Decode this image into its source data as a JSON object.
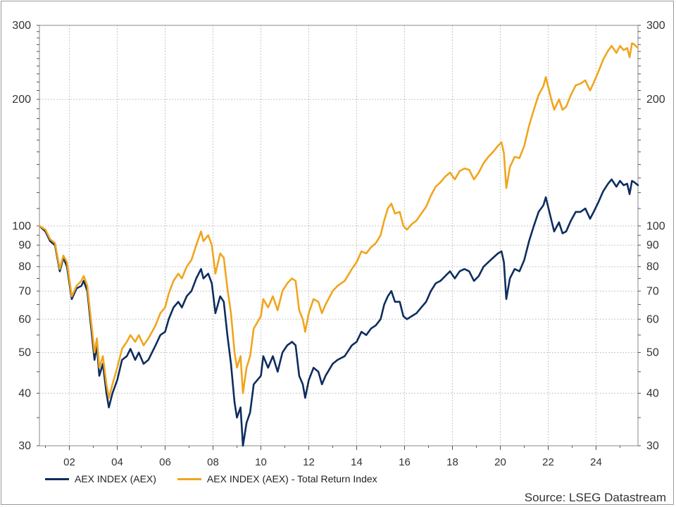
{
  "chart_data": {
    "type": "line",
    "title": "",
    "xlabel": "",
    "ylabel": "",
    "log_scale_y": true,
    "ylim": [
      30,
      300
    ],
    "xlim": [
      2000.75,
      2025.75
    ],
    "y_ticks": [
      30,
      40,
      50,
      60,
      70,
      80,
      90,
      100,
      200,
      300
    ],
    "x_ticks": [
      {
        "value": 2002,
        "label": "02"
      },
      {
        "value": 2004,
        "label": "04"
      },
      {
        "value": 2006,
        "label": "06"
      },
      {
        "value": 2008,
        "label": "08"
      },
      {
        "value": 2010,
        "label": "10"
      },
      {
        "value": 2012,
        "label": "12"
      },
      {
        "value": 2014,
        "label": "14"
      },
      {
        "value": 2016,
        "label": "16"
      },
      {
        "value": 2018,
        "label": "18"
      },
      {
        "value": 2020,
        "label": "20"
      },
      {
        "value": 2022,
        "label": "22"
      },
      {
        "value": 2024,
        "label": "24"
      }
    ],
    "grid": true,
    "legend_position": "bottom-left",
    "series": [
      {
        "name": "AEX INDEX (AEX)",
        "color": "#0d2d5e",
        "points": [
          [
            2000.75,
            100
          ],
          [
            2001.0,
            97
          ],
          [
            2001.2,
            92
          ],
          [
            2001.4,
            90
          ],
          [
            2001.6,
            78
          ],
          [
            2001.75,
            84
          ],
          [
            2001.9,
            80
          ],
          [
            2002.1,
            67
          ],
          [
            2002.3,
            71
          ],
          [
            2002.5,
            72
          ],
          [
            2002.6,
            74
          ],
          [
            2002.75,
            70
          ],
          [
            2002.9,
            58
          ],
          [
            2003.05,
            48
          ],
          [
            2003.15,
            52
          ],
          [
            2003.25,
            44
          ],
          [
            2003.4,
            47
          ],
          [
            2003.55,
            40
          ],
          [
            2003.65,
            37
          ],
          [
            2003.8,
            40
          ],
          [
            2004.0,
            43
          ],
          [
            2004.2,
            48
          ],
          [
            2004.4,
            49
          ],
          [
            2004.55,
            51
          ],
          [
            2004.75,
            48
          ],
          [
            2004.9,
            50
          ],
          [
            2005.1,
            47
          ],
          [
            2005.3,
            48
          ],
          [
            2005.6,
            52
          ],
          [
            2005.8,
            55
          ],
          [
            2006.0,
            56
          ],
          [
            2006.15,
            60
          ],
          [
            2006.35,
            64
          ],
          [
            2006.55,
            66
          ],
          [
            2006.7,
            64
          ],
          [
            2006.9,
            68
          ],
          [
            2007.1,
            70
          ],
          [
            2007.3,
            75
          ],
          [
            2007.5,
            79
          ],
          [
            2007.6,
            75
          ],
          [
            2007.8,
            77
          ],
          [
            2007.95,
            73
          ],
          [
            2008.1,
            62
          ],
          [
            2008.3,
            68
          ],
          [
            2008.45,
            66
          ],
          [
            2008.6,
            55
          ],
          [
            2008.75,
            47
          ],
          [
            2008.9,
            38
          ],
          [
            2009.0,
            35
          ],
          [
            2009.15,
            37
          ],
          [
            2009.25,
            30
          ],
          [
            2009.4,
            34
          ],
          [
            2009.55,
            36
          ],
          [
            2009.7,
            42
          ],
          [
            2010.0,
            44
          ],
          [
            2010.1,
            49
          ],
          [
            2010.3,
            46
          ],
          [
            2010.5,
            49
          ],
          [
            2010.7,
            45
          ],
          [
            2010.9,
            50
          ],
          [
            2011.1,
            52
          ],
          [
            2011.3,
            53
          ],
          [
            2011.45,
            52
          ],
          [
            2011.6,
            44
          ],
          [
            2011.75,
            42
          ],
          [
            2011.85,
            39
          ],
          [
            2012.0,
            43
          ],
          [
            2012.2,
            46
          ],
          [
            2012.4,
            45
          ],
          [
            2012.55,
            42
          ],
          [
            2012.7,
            44
          ],
          [
            2013.0,
            47
          ],
          [
            2013.2,
            48
          ],
          [
            2013.5,
            49
          ],
          [
            2013.8,
            52
          ],
          [
            2014.0,
            53
          ],
          [
            2014.2,
            56
          ],
          [
            2014.4,
            55
          ],
          [
            2014.6,
            57
          ],
          [
            2014.8,
            58
          ],
          [
            2015.0,
            60
          ],
          [
            2015.15,
            65
          ],
          [
            2015.3,
            68
          ],
          [
            2015.45,
            70
          ],
          [
            2015.6,
            66
          ],
          [
            2015.8,
            66
          ],
          [
            2015.95,
            61
          ],
          [
            2016.1,
            60
          ],
          [
            2016.3,
            61
          ],
          [
            2016.5,
            62
          ],
          [
            2016.7,
            64
          ],
          [
            2016.9,
            66
          ],
          [
            2017.1,
            70
          ],
          [
            2017.3,
            73
          ],
          [
            2017.5,
            74
          ],
          [
            2017.7,
            76
          ],
          [
            2017.9,
            78
          ],
          [
            2018.1,
            75
          ],
          [
            2018.3,
            78
          ],
          [
            2018.5,
            79
          ],
          [
            2018.7,
            78
          ],
          [
            2018.9,
            74
          ],
          [
            2019.1,
            76
          ],
          [
            2019.3,
            80
          ],
          [
            2019.5,
            82
          ],
          [
            2019.7,
            84
          ],
          [
            2019.9,
            86
          ],
          [
            2020.05,
            87
          ],
          [
            2020.15,
            82
          ],
          [
            2020.25,
            67
          ],
          [
            2020.4,
            75
          ],
          [
            2020.6,
            79
          ],
          [
            2020.8,
            78
          ],
          [
            2021.0,
            83
          ],
          [
            2021.2,
            92
          ],
          [
            2021.4,
            100
          ],
          [
            2021.6,
            108
          ],
          [
            2021.8,
            112
          ],
          [
            2021.9,
            117
          ],
          [
            2022.1,
            105
          ],
          [
            2022.25,
            97
          ],
          [
            2022.45,
            102
          ],
          [
            2022.6,
            96
          ],
          [
            2022.75,
            97
          ],
          [
            2022.95,
            103
          ],
          [
            2023.15,
            108
          ],
          [
            2023.35,
            108
          ],
          [
            2023.55,
            110
          ],
          [
            2023.75,
            104
          ],
          [
            2023.9,
            108
          ],
          [
            2024.1,
            114
          ],
          [
            2024.3,
            121
          ],
          [
            2024.5,
            126
          ],
          [
            2024.65,
            129
          ],
          [
            2024.85,
            124
          ],
          [
            2025.0,
            128
          ],
          [
            2025.15,
            125
          ],
          [
            2025.3,
            126
          ],
          [
            2025.4,
            119
          ],
          [
            2025.5,
            128
          ],
          [
            2025.6,
            127
          ],
          [
            2025.75,
            125
          ]
        ]
      },
      {
        "name": "AEX INDEX (AEX) - Total Return Index",
        "color": "#f0a51e",
        "points": [
          [
            2000.75,
            100
          ],
          [
            2001.0,
            98
          ],
          [
            2001.2,
            93
          ],
          [
            2001.4,
            91
          ],
          [
            2001.6,
            79
          ],
          [
            2001.75,
            85
          ],
          [
            2001.9,
            82
          ],
          [
            2002.1,
            68
          ],
          [
            2002.3,
            72
          ],
          [
            2002.5,
            74
          ],
          [
            2002.6,
            76
          ],
          [
            2002.75,
            72
          ],
          [
            2002.9,
            60
          ],
          [
            2003.05,
            50
          ],
          [
            2003.15,
            54
          ],
          [
            2003.25,
            46
          ],
          [
            2003.4,
            49
          ],
          [
            2003.55,
            42
          ],
          [
            2003.65,
            39
          ],
          [
            2003.8,
            42
          ],
          [
            2004.0,
            46
          ],
          [
            2004.2,
            51
          ],
          [
            2004.4,
            53
          ],
          [
            2004.55,
            55
          ],
          [
            2004.75,
            53
          ],
          [
            2004.9,
            55
          ],
          [
            2005.1,
            52
          ],
          [
            2005.3,
            54
          ],
          [
            2005.6,
            58
          ],
          [
            2005.8,
            62
          ],
          [
            2006.0,
            64
          ],
          [
            2006.15,
            69
          ],
          [
            2006.35,
            74
          ],
          [
            2006.55,
            77
          ],
          [
            2006.7,
            75
          ],
          [
            2006.9,
            80
          ],
          [
            2007.1,
            83
          ],
          [
            2007.3,
            90
          ],
          [
            2007.5,
            97
          ],
          [
            2007.6,
            92
          ],
          [
            2007.8,
            95
          ],
          [
            2007.95,
            90
          ],
          [
            2008.1,
            77
          ],
          [
            2008.3,
            86
          ],
          [
            2008.45,
            84
          ],
          [
            2008.6,
            71
          ],
          [
            2008.75,
            62
          ],
          [
            2008.9,
            50
          ],
          [
            2009.0,
            46
          ],
          [
            2009.15,
            49
          ],
          [
            2009.25,
            40
          ],
          [
            2009.4,
            46
          ],
          [
            2009.55,
            49
          ],
          [
            2009.7,
            57
          ],
          [
            2010.0,
            61
          ],
          [
            2010.1,
            67
          ],
          [
            2010.3,
            64
          ],
          [
            2010.5,
            68
          ],
          [
            2010.7,
            63
          ],
          [
            2010.9,
            70
          ],
          [
            2011.1,
            73
          ],
          [
            2011.3,
            75
          ],
          [
            2011.45,
            74
          ],
          [
            2011.6,
            63
          ],
          [
            2011.75,
            60
          ],
          [
            2011.85,
            56
          ],
          [
            2012.0,
            62
          ],
          [
            2012.2,
            67
          ],
          [
            2012.4,
            66
          ],
          [
            2012.55,
            62
          ],
          [
            2012.7,
            65
          ],
          [
            2013.0,
            70
          ],
          [
            2013.2,
            72
          ],
          [
            2013.5,
            74
          ],
          [
            2013.8,
            79
          ],
          [
            2014.0,
            82
          ],
          [
            2014.2,
            87
          ],
          [
            2014.4,
            86
          ],
          [
            2014.6,
            89
          ],
          [
            2014.8,
            91
          ],
          [
            2015.0,
            95
          ],
          [
            2015.15,
            103
          ],
          [
            2015.3,
            110
          ],
          [
            2015.45,
            113
          ],
          [
            2015.6,
            107
          ],
          [
            2015.8,
            108
          ],
          [
            2015.95,
            100
          ],
          [
            2016.1,
            98
          ],
          [
            2016.3,
            101
          ],
          [
            2016.5,
            103
          ],
          [
            2016.7,
            107
          ],
          [
            2016.9,
            111
          ],
          [
            2017.1,
            118
          ],
          [
            2017.3,
            124
          ],
          [
            2017.5,
            127
          ],
          [
            2017.7,
            131
          ],
          [
            2017.9,
            134
          ],
          [
            2018.1,
            129
          ],
          [
            2018.3,
            135
          ],
          [
            2018.5,
            137
          ],
          [
            2018.7,
            136
          ],
          [
            2018.9,
            129
          ],
          [
            2019.1,
            134
          ],
          [
            2019.3,
            141
          ],
          [
            2019.5,
            146
          ],
          [
            2019.7,
            150
          ],
          [
            2019.9,
            155
          ],
          [
            2020.05,
            158
          ],
          [
            2020.15,
            149
          ],
          [
            2020.25,
            123
          ],
          [
            2020.4,
            138
          ],
          [
            2020.6,
            146
          ],
          [
            2020.8,
            145
          ],
          [
            2021.0,
            155
          ],
          [
            2021.2,
            173
          ],
          [
            2021.4,
            189
          ],
          [
            2021.6,
            205
          ],
          [
            2021.8,
            215
          ],
          [
            2021.9,
            226
          ],
          [
            2022.1,
            203
          ],
          [
            2022.25,
            189
          ],
          [
            2022.45,
            200
          ],
          [
            2022.6,
            189
          ],
          [
            2022.75,
            192
          ],
          [
            2022.95,
            205
          ],
          [
            2023.15,
            216
          ],
          [
            2023.35,
            218
          ],
          [
            2023.55,
            222
          ],
          [
            2023.75,
            210
          ],
          [
            2023.9,
            219
          ],
          [
            2024.1,
            233
          ],
          [
            2024.3,
            249
          ],
          [
            2024.5,
            261
          ],
          [
            2024.65,
            268
          ],
          [
            2024.85,
            258
          ],
          [
            2025.0,
            268
          ],
          [
            2025.15,
            262
          ],
          [
            2025.3,
            265
          ],
          [
            2025.4,
            252
          ],
          [
            2025.5,
            272
          ],
          [
            2025.6,
            270
          ],
          [
            2025.75,
            265
          ]
        ]
      }
    ]
  },
  "legend": {
    "item1": "AEX INDEX (AEX)",
    "item2": "AEX INDEX (AEX) - Total Return Index"
  },
  "source": "Source: LSEG Datastream",
  "colors": {
    "navy": "#0d2d5e",
    "orange": "#f0a51e",
    "grid": "#c8c8c8",
    "axis": "#555555"
  }
}
